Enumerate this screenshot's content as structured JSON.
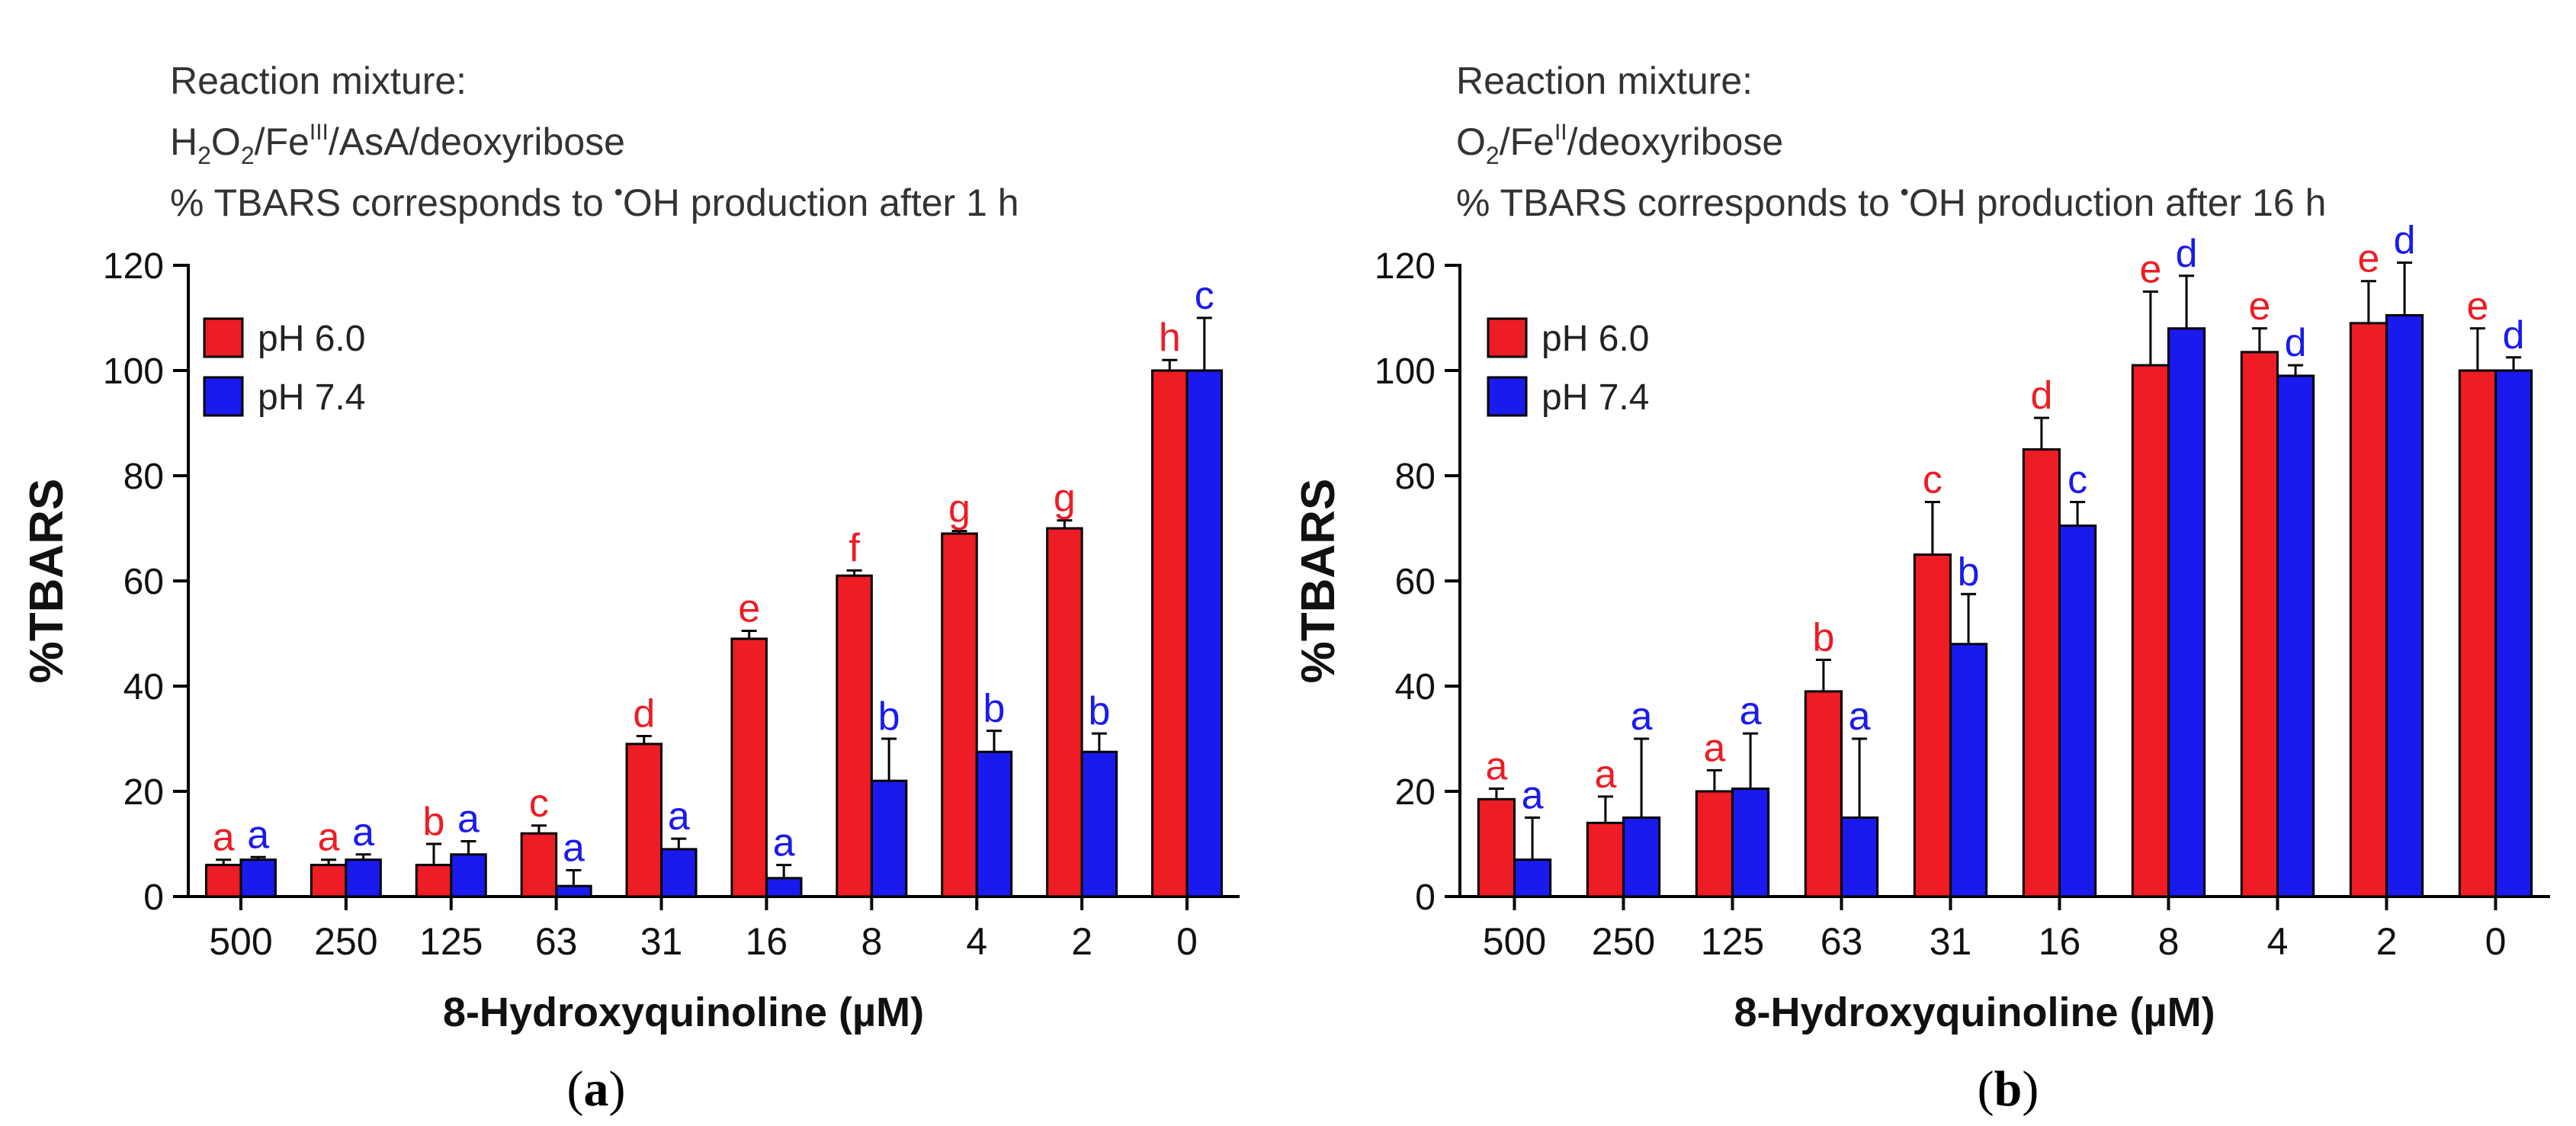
{
  "figure": {
    "panels": [
      {
        "caption": "(a)",
        "header": {
          "line1": "Reaction mixture:",
          "line2": {
            "prefix": "H",
            "sub1": "2",
            "mid1": "O",
            "sub2": "2",
            "mid2": "/Fe",
            "sup": "III",
            "suffix": "/AsA/deoxyribose"
          },
          "line3": {
            "prefix": "% TBARS corresponds to ",
            "sup": "•",
            "suffix": "OH production after 1 h"
          }
        }
      },
      {
        "caption": "(b)",
        "header": {
          "line1": "Reaction mixture:",
          "line2": {
            "prefix": "O",
            "sub1": "2",
            "mid1": "",
            "sub2": "",
            "mid2": "/Fe",
            "sup": "II",
            "suffix": "/deoxyribose"
          },
          "line3": {
            "prefix": "% TBARS corresponds to ",
            "sup": "•",
            "suffix": "OH production after 16 h"
          }
        }
      }
    ]
  },
  "colors": {
    "ph60": "#ee1c24",
    "ph74": "#1a1aee",
    "axis": "#000000"
  },
  "chart_data": [
    {
      "type": "bar",
      "title": "",
      "xlabel": "8-Hydroxyquinoline (µM)",
      "ylabel": "%TBARS",
      "ylim": [
        0,
        120
      ],
      "yticks": [
        0,
        20,
        40,
        60,
        80,
        100,
        120
      ],
      "legend_position": "top-left",
      "categories": [
        "500",
        "250",
        "125",
        "63",
        "31",
        "16",
        "8",
        "4",
        "2",
        "0"
      ],
      "series": [
        {
          "name": "pH 6.0",
          "values": [
            6,
            6,
            6,
            12,
            29,
            49,
            61,
            69,
            70,
            100
          ],
          "errors": [
            1,
            1,
            4,
            1.5,
            1.5,
            1.5,
            1,
            0.5,
            1.5,
            2
          ],
          "letters": [
            "a",
            "a",
            "b",
            "c",
            "d",
            "e",
            "f",
            "g",
            "g",
            "h"
          ]
        },
        {
          "name": "pH 7.4",
          "values": [
            7,
            7,
            8,
            2,
            9,
            3.5,
            22,
            27.5,
            27.5,
            100
          ],
          "errors": [
            0.5,
            1,
            2.5,
            3,
            2,
            2.5,
            8,
            4,
            3.5,
            10
          ],
          "letters": [
            "a",
            "a",
            "a",
            "a",
            "a",
            "a",
            "b",
            "b",
            "b",
            "c"
          ]
        }
      ]
    },
    {
      "type": "bar",
      "title": "",
      "xlabel": "8-Hydroxyquinoline (µM)",
      "ylabel": "%TBARS",
      "ylim": [
        0,
        120
      ],
      "yticks": [
        0,
        20,
        40,
        60,
        80,
        100,
        120
      ],
      "legend_position": "top-left",
      "categories": [
        "500",
        "250",
        "125",
        "63",
        "31",
        "16",
        "8",
        "4",
        "2",
        "0"
      ],
      "series": [
        {
          "name": "pH 6.0",
          "values": [
            18.5,
            14,
            20,
            39,
            65,
            85,
            101,
            103.5,
            109,
            100
          ],
          "errors": [
            2,
            5,
            4,
            6,
            10,
            6,
            14,
            4.5,
            8,
            8
          ],
          "letters": [
            "a",
            "a",
            "a",
            "b",
            "c",
            "d",
            "e",
            "e",
            "e",
            "e"
          ]
        },
        {
          "name": "pH 7.4",
          "values": [
            7,
            15,
            20.5,
            15,
            48,
            70.5,
            108,
            99,
            110.5,
            100
          ],
          "errors": [
            8,
            15,
            10.5,
            15,
            9.5,
            4.5,
            10,
            2,
            10,
            2.5
          ],
          "letters": [
            "a",
            "a",
            "a",
            "a",
            "b",
            "c",
            "d",
            "d",
            "d",
            "d"
          ]
        }
      ]
    }
  ]
}
